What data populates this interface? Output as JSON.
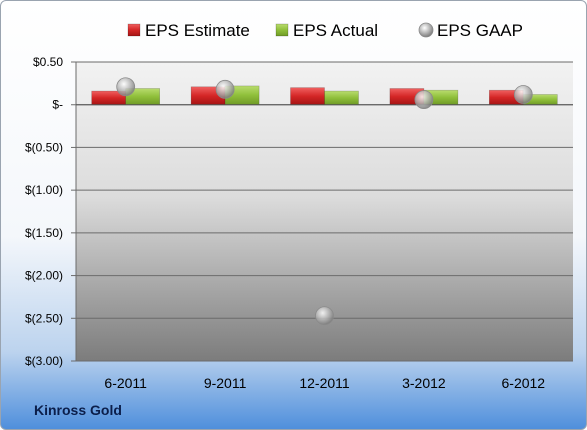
{
  "footer": {
    "company": "Kinross Gold"
  },
  "colors": {
    "estimate": "#d42626",
    "actual": "#8fbf3a",
    "gaap": "#b4b4b4",
    "plot_top": "#f0f0f0",
    "plot_bottom": "#7a7a7a"
  },
  "chart_data": {
    "type": "bar",
    "title": "",
    "xlabel": "",
    "ylabel": "",
    "categories": [
      "6-2011",
      "9-2011",
      "12-2011",
      "3-2012",
      "6-2012"
    ],
    "series": [
      {
        "name": "EPS Estimate",
        "kind": "bar",
        "values": [
          0.16,
          0.21,
          0.2,
          0.19,
          0.17
        ]
      },
      {
        "name": "EPS Actual",
        "kind": "bar",
        "values": [
          0.19,
          0.22,
          0.16,
          0.17,
          0.12
        ]
      },
      {
        "name": "EPS GAAP",
        "kind": "marker",
        "values": [
          0.21,
          0.18,
          -2.47,
          0.06,
          0.12
        ]
      }
    ],
    "ylim": [
      -3.0,
      0.5
    ],
    "yticks": [
      0.5,
      0,
      -0.5,
      -1.0,
      -1.5,
      -2.0,
      -2.5,
      -3.0
    ],
    "ytick_labels": [
      "$0.50",
      "$-",
      "$(0.50)",
      "$(1.00)",
      "$(1.50)",
      "$(2.00)",
      "$(2.50)",
      "$(3.00)"
    ],
    "grid": true,
    "legend_position": "top"
  }
}
